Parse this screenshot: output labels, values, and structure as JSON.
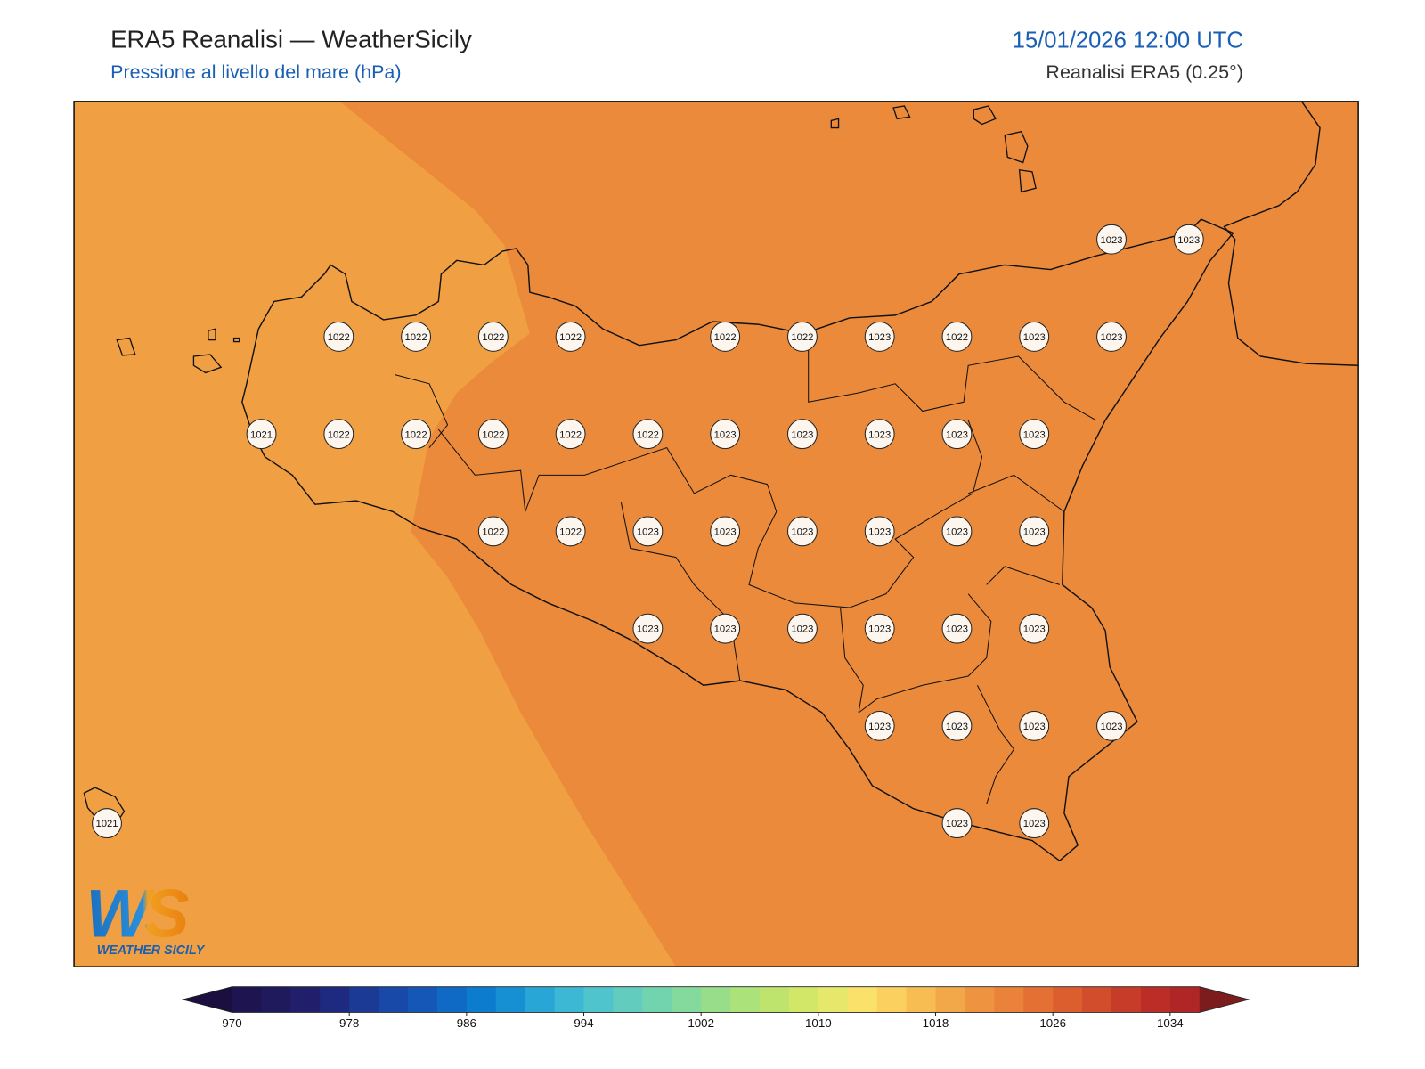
{
  "header": {
    "title": "ERA5 Reanalisi — WeatherSicily",
    "subtitle": "Pressione al livello del mare (hPa)",
    "datetime": "15/01/2026 12:00 UTC",
    "source": "Reanalisi ERA5 (0.25°)"
  },
  "pressure_labels": [
    1023,
    1023,
    1022,
    1022,
    1022,
    1022,
    1022,
    1022,
    1023,
    1022,
    1023,
    1023,
    1021,
    1022,
    1022,
    1022,
    1022,
    1022,
    1023,
    1023,
    1023,
    1023,
    1023,
    1022,
    1022,
    1023,
    1023,
    1023,
    1023,
    1023,
    1023,
    1023,
    1023,
    1023,
    1023,
    1023,
    1023,
    1023,
    1023,
    1023,
    1023,
    1021,
    1023,
    1023
  ],
  "colorbar": {
    "ticks": [
      970,
      978,
      986,
      994,
      1002,
      1010,
      1018,
      1026,
      1034
    ],
    "colors": [
      "#1e1450",
      "#1f1a5c",
      "#211f6b",
      "#1e2a80",
      "#1b3a96",
      "#1848a8",
      "#1457b7",
      "#0f6ac5",
      "#0c7ccf",
      "#1690d3",
      "#28a6d6",
      "#3cb8d4",
      "#4fc4cc",
      "#62cdbe",
      "#72d4ae",
      "#84da9c",
      "#98dd8a",
      "#abe27a",
      "#bfe46d",
      "#d2e768",
      "#e6e86b",
      "#f9e16a",
      "#fbd05e",
      "#f7bd52",
      "#f2a848",
      "#ee9440",
      "#eb823a",
      "#e57034",
      "#dc5e2f",
      "#d24d2b",
      "#c73c28",
      "#bb2d26",
      "#b02626"
    ],
    "under_color": "#1a0f3f",
    "over_color": "#7d1c1c"
  },
  "logo": {
    "mark": "WS",
    "caption": "WEATHER SICILY"
  }
}
